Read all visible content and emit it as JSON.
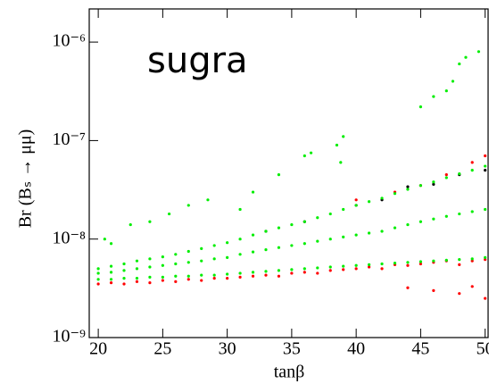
{
  "chart_data": {
    "type": "scatter",
    "annotation": "sugra",
    "xlabel": "tanβ",
    "ylabel": "Br (Bₛ → μμ)",
    "xlim": [
      19.3,
      50.3
    ],
    "xticks": [
      20,
      25,
      30,
      35,
      40,
      45,
      50
    ],
    "ylim": [
      1e-09,
      2.17e-06
    ],
    "yscale": "log",
    "yticks": [
      {
        "value": 1e-09,
        "label": "10⁻⁹"
      },
      {
        "value": 1e-08,
        "label": "10⁻⁸"
      },
      {
        "value": 1e-07,
        "label": "10⁻⁷"
      },
      {
        "value": 1e-06,
        "label": "10⁻⁶"
      }
    ],
    "series": [
      {
        "color": "#ff0000",
        "x": [
          20,
          21,
          22,
          23,
          24,
          25,
          26,
          27,
          28,
          29,
          30,
          31,
          32,
          33,
          34,
          35,
          36,
          37,
          38,
          39,
          40,
          41,
          42,
          43,
          44,
          45,
          46,
          47,
          48,
          49,
          50,
          44,
          46,
          48,
          50,
          49,
          40,
          43,
          45,
          47,
          49,
          50
        ],
        "values": [
          3.5e-09,
          3.6e-09,
          3.5e-09,
          3.7e-09,
          3.6e-09,
          3.8e-09,
          3.7e-09,
          3.9e-09,
          3.8e-09,
          4e-09,
          4e-09,
          4.1e-09,
          4.2e-09,
          4.3e-09,
          4.2e-09,
          4.5e-09,
          4.6e-09,
          4.5e-09,
          4.8e-09,
          4.9e-09,
          5e-09,
          5.2e-09,
          5e-09,
          5.5e-09,
          5.4e-09,
          5.6e-09,
          5.8e-09,
          6e-09,
          5.5e-09,
          6e-09,
          6.2e-09,
          3.2e-09,
          3e-09,
          2.8e-09,
          2.5e-09,
          3.3e-09,
          2.5e-08,
          3e-08,
          3.5e-08,
          4.5e-08,
          6e-08,
          7e-08
        ]
      },
      {
        "color": "#000000",
        "x": [
          36,
          40,
          42,
          44,
          46,
          48,
          50,
          33
        ],
        "values": [
          1.5e-08,
          2.2e-08,
          2.5e-08,
          3.4e-08,
          3.6e-08,
          4.5e-08,
          5e-08,
          1.2e-08
        ]
      },
      {
        "color": "#00ee00",
        "x": [
          20,
          21,
          22,
          23,
          24,
          25,
          26,
          27,
          28,
          29,
          30,
          31,
          32,
          33,
          34,
          35,
          36,
          37,
          38,
          39,
          40,
          41,
          42,
          43,
          44,
          45,
          46,
          47,
          48,
          49,
          50,
          20,
          21,
          22,
          23,
          24,
          25,
          26,
          27,
          28,
          29,
          30,
          31,
          32,
          33,
          34,
          35,
          36,
          37,
          38,
          39,
          40,
          41,
          42,
          43,
          44,
          45,
          46,
          47,
          48,
          49,
          50,
          20,
          21,
          22,
          23,
          24,
          25,
          26,
          27,
          28,
          29,
          30,
          31,
          32,
          33,
          34,
          35,
          36,
          37,
          38,
          39,
          40,
          41,
          42,
          43,
          44,
          45,
          46,
          47,
          48,
          49,
          50,
          20.5,
          21,
          22.5,
          24,
          25.5,
          27,
          28.5,
          31,
          32,
          34,
          36,
          36.5,
          38.5,
          39,
          38.8,
          45,
          46,
          47.5,
          48,
          48.5,
          49.5,
          47
        ],
        "values": [
          3.9e-09,
          3.9e-09,
          4e-09,
          4e-09,
          4.1e-09,
          4.1e-09,
          4.2e-09,
          4.2e-09,
          4.3e-09,
          4.3e-09,
          4.4e-09,
          4.5e-09,
          4.6e-09,
          4.7e-09,
          4.8e-09,
          4.9e-09,
          5e-09,
          5.1e-09,
          5.2e-09,
          5.3e-09,
          5.4e-09,
          5.5e-09,
          5.6e-09,
          5.7e-09,
          5.8e-09,
          5.9e-09,
          6e-09,
          6.1e-09,
          6.2e-09,
          6.3e-09,
          6.5e-09,
          4.5e-09,
          4.6e-09,
          4.8e-09,
          5e-09,
          5.2e-09,
          5.4e-09,
          5.6e-09,
          5.8e-09,
          6e-09,
          6.3e-09,
          6.5e-09,
          7e-09,
          7.4e-09,
          7.8e-09,
          8.2e-09,
          8.6e-09,
          9e-09,
          9.5e-09,
          1e-08,
          1.05e-08,
          1.1e-08,
          1.15e-08,
          1.2e-08,
          1.3e-08,
          1.4e-08,
          1.5e-08,
          1.6e-08,
          1.7e-08,
          1.8e-08,
          1.9e-08,
          2e-08,
          5e-09,
          5.3e-09,
          5.6e-09,
          6e-09,
          6.3e-09,
          6.6e-09,
          7e-09,
          7.5e-09,
          8e-09,
          8.6e-09,
          9.2e-09,
          1e-08,
          1.1e-08,
          1.2e-08,
          1.3e-08,
          1.4e-08,
          1.5e-08,
          1.65e-08,
          1.8e-08,
          2e-08,
          2.2e-08,
          2.4e-08,
          2.6e-08,
          2.9e-08,
          3.2e-08,
          3.5e-08,
          3.8e-08,
          4.2e-08,
          4.6e-08,
          5e-08,
          5.5e-08,
          1e-08,
          9e-09,
          1.4e-08,
          1.5e-08,
          1.8e-08,
          2.2e-08,
          2.5e-08,
          2e-08,
          3e-08,
          4.5e-08,
          7e-08,
          7.5e-08,
          9e-08,
          1.1e-07,
          6e-08,
          2.2e-07,
          2.8e-07,
          4e-07,
          6e-07,
          7e-07,
          8e-07,
          3.2e-07
        ]
      }
    ]
  }
}
